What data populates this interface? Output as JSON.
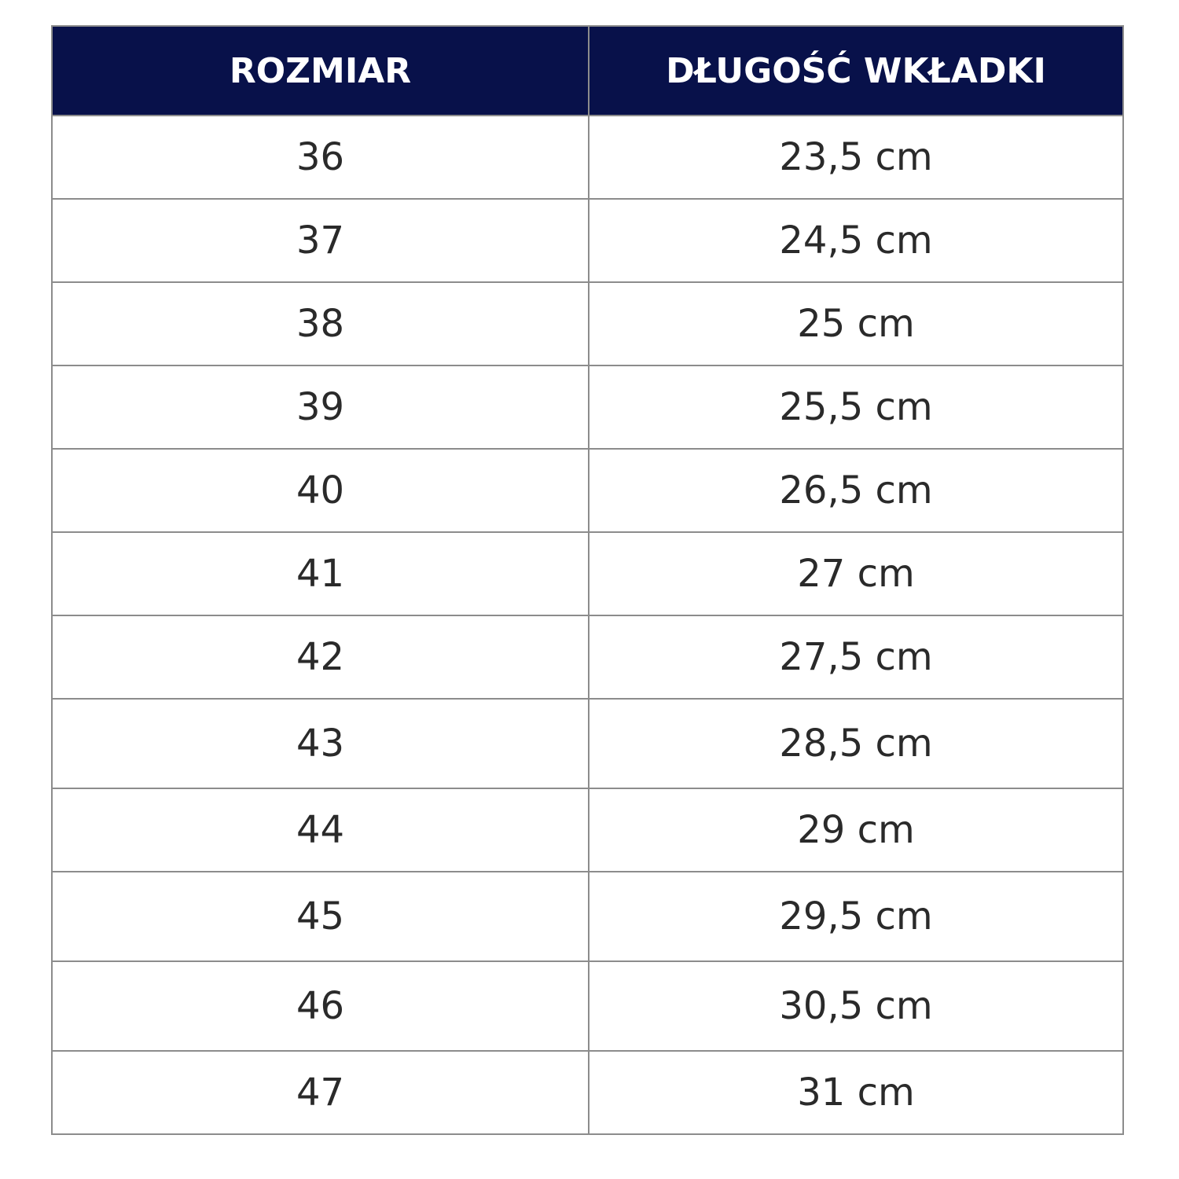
{
  "header": {
    "col_size": "ROZMIAR",
    "col_length": "DŁUGOŚĆ WKŁADKI"
  },
  "colors": {
    "header_bg": "#08114a",
    "header_text": "#ffffff",
    "border": "#8c8c8c"
  },
  "rows": [
    {
      "size": "36",
      "length": "23,5 cm"
    },
    {
      "size": "37",
      "length": "24,5 cm"
    },
    {
      "size": "38",
      "length": "25 cm"
    },
    {
      "size": "39",
      "length": "25,5 cm"
    },
    {
      "size": "40",
      "length": "26,5 cm"
    },
    {
      "size": "41",
      "length": "27 cm"
    },
    {
      "size": "42",
      "length": "27,5 cm"
    },
    {
      "size": "43",
      "length": "28,5 cm"
    },
    {
      "size": "44",
      "length": "29 cm"
    },
    {
      "size": "45",
      "length": "29,5 cm"
    },
    {
      "size": "46",
      "length": "30,5 cm"
    },
    {
      "size": "47",
      "length": "31 cm"
    }
  ]
}
